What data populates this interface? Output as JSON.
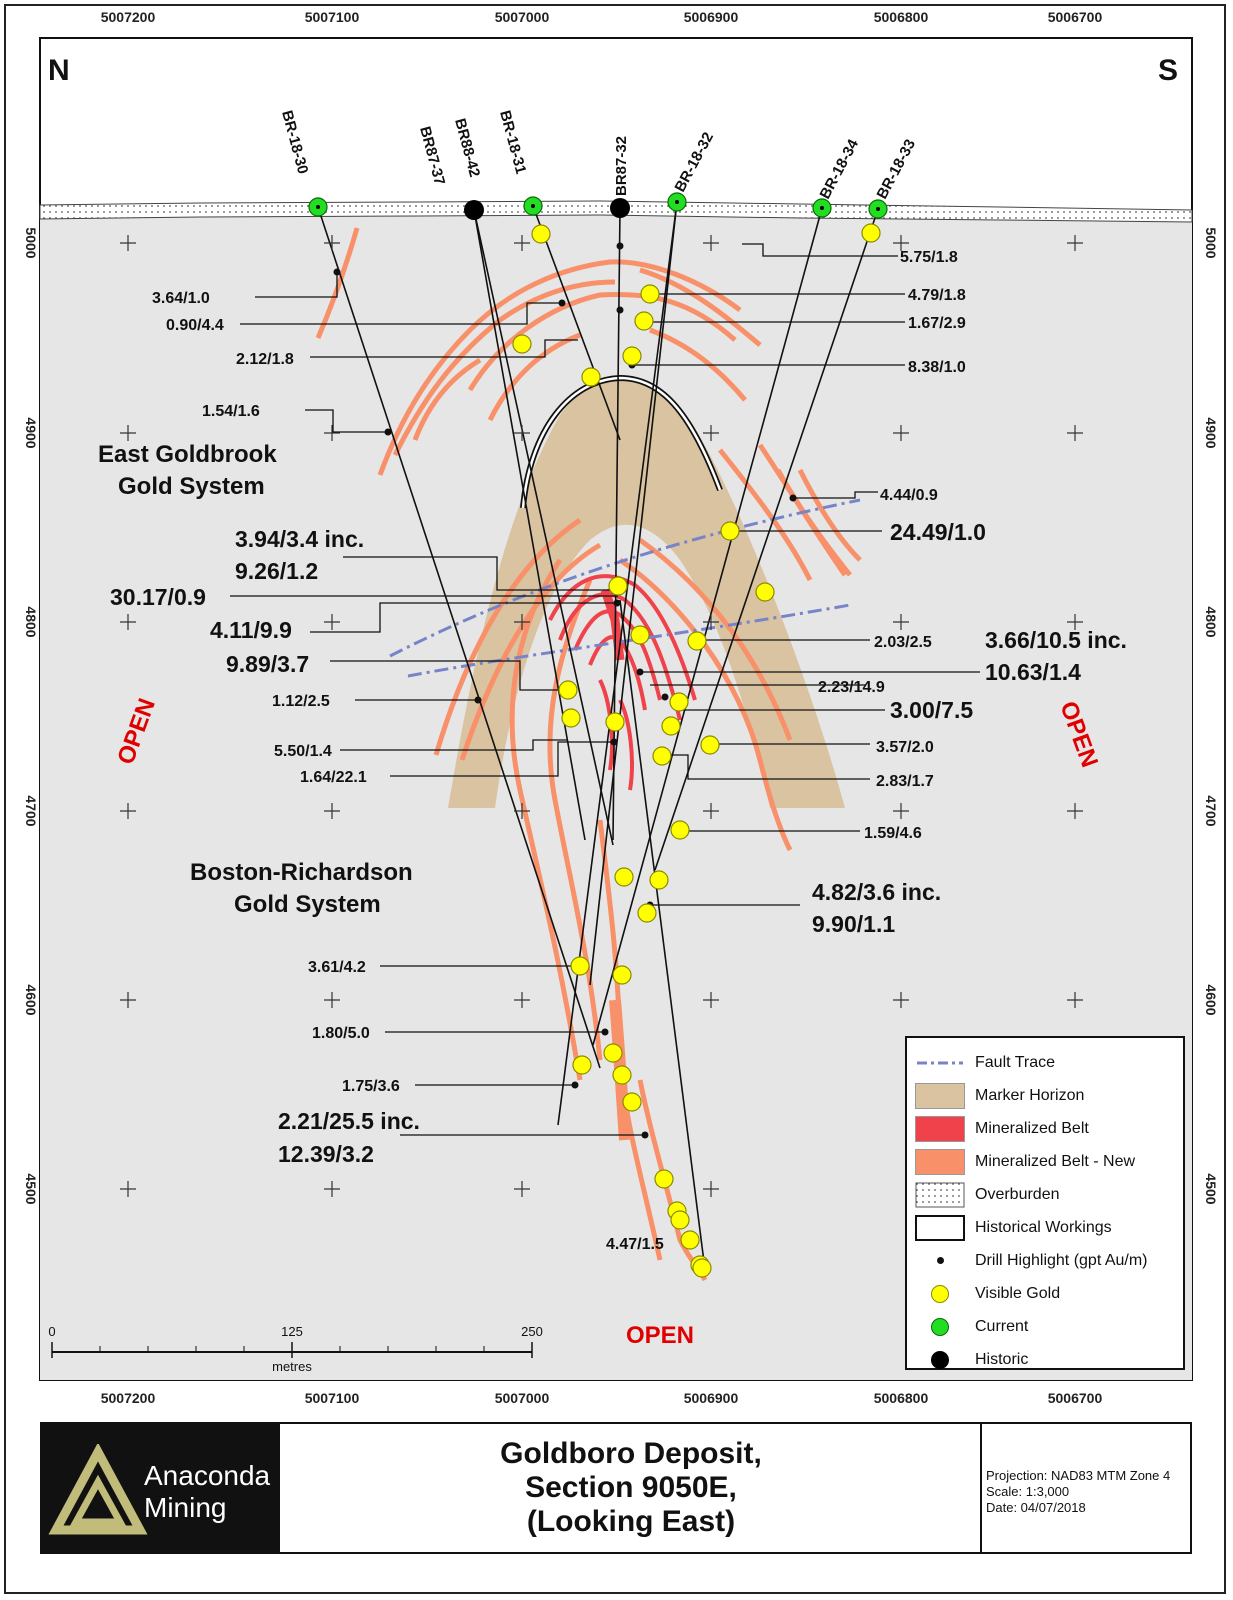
{
  "map": {
    "compass_north": "N",
    "compass_south": "S",
    "top_axis_ticks": [
      "5007200",
      "5007100",
      "5007000",
      "5006900",
      "5006800",
      "5006700"
    ],
    "bottom_axis_ticks": [
      "5007200",
      "5007100",
      "5007000",
      "5006900",
      "5006800",
      "5006700"
    ],
    "side_axis_ticks": [
      "5000",
      "4900",
      "4800",
      "4700",
      "4600",
      "4500"
    ],
    "drill_holes": [
      "BR-18-30",
      "BR87-37",
      "BR88-42",
      "BR-18-31",
      "BR87-32",
      "BR-18-32",
      "BR-18-34",
      "BR-18-33"
    ],
    "systems": {
      "east_line1": "East Goldbrook",
      "east_line2": "Gold System",
      "boston_line1": "Boston-Richardson",
      "boston_line2": "Gold System"
    },
    "open_labels": [
      "OPEN",
      "OPEN",
      "OPEN"
    ],
    "intercepts_left": [
      "3.64/1.0",
      "0.90/4.4",
      "2.12/1.8",
      "1.54/1.6",
      "1.12/2.5",
      "5.50/1.4",
      "1.64/22.1",
      "3.61/4.2",
      "1.80/5.0",
      "1.75/3.6",
      "4.47/1.5"
    ],
    "intercepts_left_large": [
      "3.94/3.4 inc.",
      "9.26/1.2",
      "30.17/0.9",
      "4.11/9.9",
      "9.89/3.7",
      "2.21/25.5 inc.",
      "12.39/3.2"
    ],
    "intercepts_right": [
      "5.75/1.8",
      "4.79/1.8",
      "1.67/2.9",
      "8.38/1.0",
      "4.44/0.9",
      "2.03/2.5",
      "2.23/14.9",
      "3.57/2.0",
      "2.83/1.7",
      "1.59/4.6"
    ],
    "intercepts_right_large": [
      "24.49/1.0",
      "3.66/10.5 inc.",
      "10.63/1.4",
      "3.00/7.5",
      "4.82/3.6 inc.",
      "9.90/1.1"
    ],
    "scale_bar": {
      "ticks": [
        "0",
        "125",
        "250"
      ],
      "unit": "metres"
    }
  },
  "legend": {
    "items": [
      "Fault Trace",
      "Marker Horizon",
      "Mineralized Belt",
      "Mineralized Belt - New",
      "Overburden",
      "Historical Workings",
      "Drill Highlight (gpt Au/m)",
      "Visible Gold",
      "Current",
      "Historic"
    ]
  },
  "title_block": {
    "company_line1": "Anaconda",
    "company_line2": "Mining",
    "title_line1": "Goldboro Deposit,",
    "title_line2": "Section 9050E,",
    "title_line3": "(Looking East)",
    "projection": "Projection: NAD83 MTM Zone 4",
    "scale": "Scale: 1:3,000",
    "date": "Date: 04/07/2018"
  },
  "colors": {
    "map_background": "#e6e6e6",
    "marker_horizon": "#d9c3a0",
    "mineralized_belt": "#f0424a",
    "mineralized_belt_new": "#f8916a",
    "fault_trace": "#7784c8",
    "visible_gold": "#ffff00",
    "current_hole": "#22dd22",
    "open_text": "#e00000"
  }
}
